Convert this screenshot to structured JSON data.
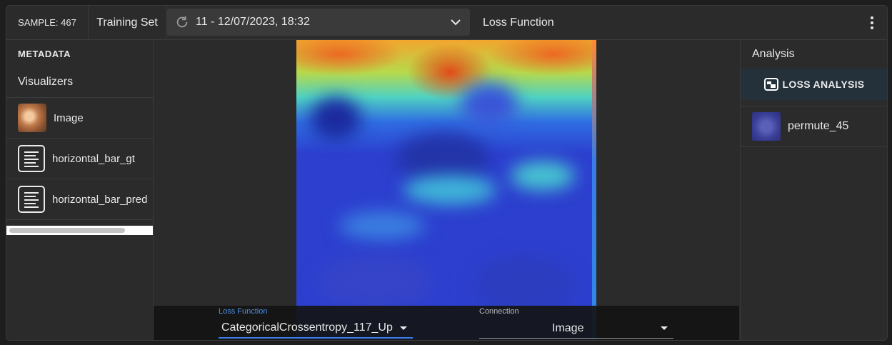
{
  "header": {
    "sample_label": "SAMPLE: 467",
    "dataset": "Training Set",
    "run": "11 - 12/07/2023, 18:32",
    "section_title": "Loss Function"
  },
  "left_panel": {
    "metadata_heading": "METADATA",
    "visualizers_heading": "Visualizers",
    "items": [
      {
        "label": "Image",
        "icon": "image-thumbnail"
      },
      {
        "label": "horizontal_bar_gt",
        "icon": "text-lines-icon"
      },
      {
        "label": "horizontal_bar_pred",
        "icon": "text-lines-icon"
      }
    ]
  },
  "center": {
    "loss_function_label": "Loss Function",
    "loss_function_value": "CategoricalCrossentropy_117_Up",
    "connection_label": "Connection",
    "connection_value": "Image"
  },
  "right_panel": {
    "heading": "Analysis",
    "loss_analysis_button": "LOSS ANALYSIS",
    "items": [
      {
        "label": "permute_45"
      }
    ]
  },
  "colors": {
    "background": "#2b2b2b",
    "accent_blue": "#3a7be8",
    "loss_analysis_bg": "#24313a"
  }
}
